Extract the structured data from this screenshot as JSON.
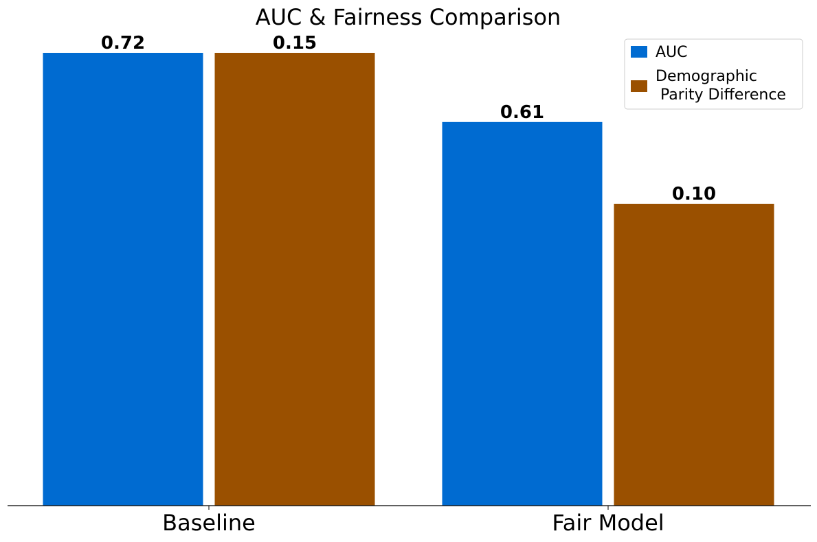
{
  "chart_data": {
    "type": "bar",
    "title": "AUC & Fairness Comparison",
    "categories": [
      "Baseline",
      "Fair Model"
    ],
    "series": [
      {
        "name": "AUC",
        "color": "#006bd1",
        "values": [
          0.72,
          0.61
        ],
        "labels": [
          "0.72",
          "0.61"
        ]
      },
      {
        "name": "Demographic\n Parity Difference",
        "color": "#9a5000",
        "values": [
          0.15,
          0.1
        ],
        "labels": [
          "0.15",
          "0.10"
        ]
      }
    ],
    "xlabel": "",
    "ylabel": "",
    "normalization": "per-series",
    "legend_position": "top-right",
    "grid": false
  }
}
